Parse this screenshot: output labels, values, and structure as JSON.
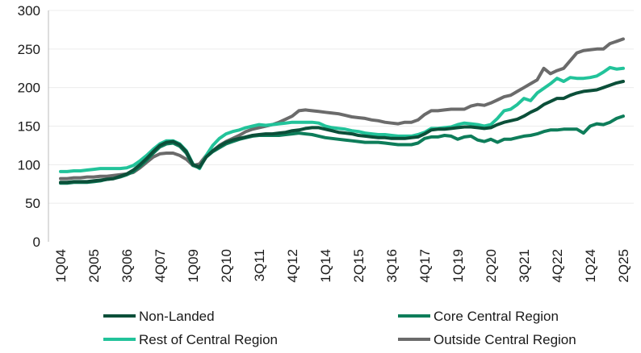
{
  "chart_data": {
    "type": "line",
    "title": "",
    "xlabel": "",
    "ylabel": "",
    "ylim": [
      0,
      300
    ],
    "yticks": [
      0,
      50,
      100,
      150,
      200,
      250,
      300
    ],
    "grid": "horizontal",
    "legend_position": "bottom",
    "x_start": "1Q04",
    "x_end": "2Q25",
    "x_tick_labels": [
      "1Q04",
      "2Q05",
      "3Q06",
      "4Q07",
      "1Q09",
      "2Q10",
      "3Q11",
      "4Q12",
      "1Q14",
      "2Q15",
      "3Q16",
      "4Q17",
      "1Q19",
      "2Q20",
      "3Q21",
      "4Q22",
      "1Q24",
      "2Q25"
    ],
    "series": [
      {
        "name": "Non-Landed",
        "color": "#0b4f39",
        "values": [
          77,
          77,
          78,
          78,
          78,
          79,
          80,
          81,
          82,
          85,
          88,
          93,
          100,
          108,
          117,
          125,
          129,
          130,
          126,
          117,
          100,
          97,
          110,
          118,
          124,
          129,
          132,
          134,
          136,
          138,
          139,
          140,
          140,
          141,
          142,
          144,
          145,
          147,
          148,
          148,
          146,
          144,
          142,
          141,
          140,
          138,
          137,
          136,
          135,
          135,
          134,
          134,
          134,
          135,
          136,
          140,
          145,
          146,
          146,
          147,
          148,
          149,
          149,
          148,
          147,
          148,
          152,
          155,
          157,
          159,
          163,
          168,
          172,
          178,
          182,
          186,
          186,
          190,
          193,
          195,
          196,
          197,
          200,
          203,
          206,
          208
        ]
      },
      {
        "name": "Core Central Region",
        "color": "#0e7d5a",
        "values": [
          76,
          76,
          77,
          77,
          77,
          78,
          79,
          81,
          82,
          84,
          87,
          91,
          98,
          106,
          115,
          123,
          127,
          128,
          124,
          115,
          99,
          96,
          110,
          117,
          122,
          127,
          130,
          133,
          135,
          137,
          138,
          138,
          138,
          138,
          139,
          140,
          141,
          140,
          139,
          137,
          135,
          134,
          133,
          132,
          131,
          130,
          129,
          129,
          129,
          128,
          127,
          126,
          126,
          126,
          128,
          134,
          136,
          136,
          138,
          137,
          133,
          136,
          137,
          132,
          130,
          133,
          129,
          133,
          133,
          135,
          137,
          138,
          140,
          143,
          145,
          145,
          146,
          146,
          146,
          141,
          150,
          153,
          152,
          155,
          160,
          163
        ]
      },
      {
        "name": "Rest of Central Region",
        "color": "#22c39a",
        "values": [
          91,
          91,
          92,
          92,
          93,
          94,
          95,
          95,
          95,
          95,
          96,
          99,
          105,
          112,
          120,
          127,
          131,
          131,
          127,
          118,
          101,
          95,
          112,
          125,
          134,
          140,
          143,
          145,
          148,
          150,
          152,
          151,
          152,
          153,
          154,
          155,
          155,
          155,
          155,
          154,
          150,
          148,
          147,
          146,
          144,
          143,
          141,
          140,
          139,
          139,
          138,
          137,
          137,
          137,
          139,
          142,
          147,
          147,
          148,
          149,
          152,
          154,
          153,
          152,
          150,
          152,
          160,
          170,
          172,
          178,
          186,
          183,
          193,
          199,
          205,
          212,
          208,
          213,
          212,
          212,
          213,
          215,
          220,
          226,
          224,
          225
        ]
      },
      {
        "name": "Outside Central Region",
        "color": "#6b6b6b",
        "values": [
          82,
          82,
          83,
          83,
          84,
          84,
          85,
          85,
          86,
          87,
          88,
          90,
          96,
          103,
          110,
          114,
          115,
          115,
          112,
          107,
          99,
          101,
          112,
          118,
          125,
          130,
          134,
          138,
          143,
          146,
          148,
          150,
          152,
          155,
          159,
          163,
          170,
          171,
          170,
          169,
          168,
          167,
          166,
          164,
          162,
          161,
          160,
          158,
          157,
          155,
          154,
          153,
          155,
          155,
          158,
          165,
          170,
          170,
          171,
          172,
          172,
          172,
          176,
          178,
          177,
          180,
          184,
          188,
          190,
          195,
          200,
          205,
          210,
          225,
          218,
          222,
          225,
          235,
          245,
          248,
          249,
          250,
          250,
          257,
          260,
          263
        ]
      }
    ]
  }
}
